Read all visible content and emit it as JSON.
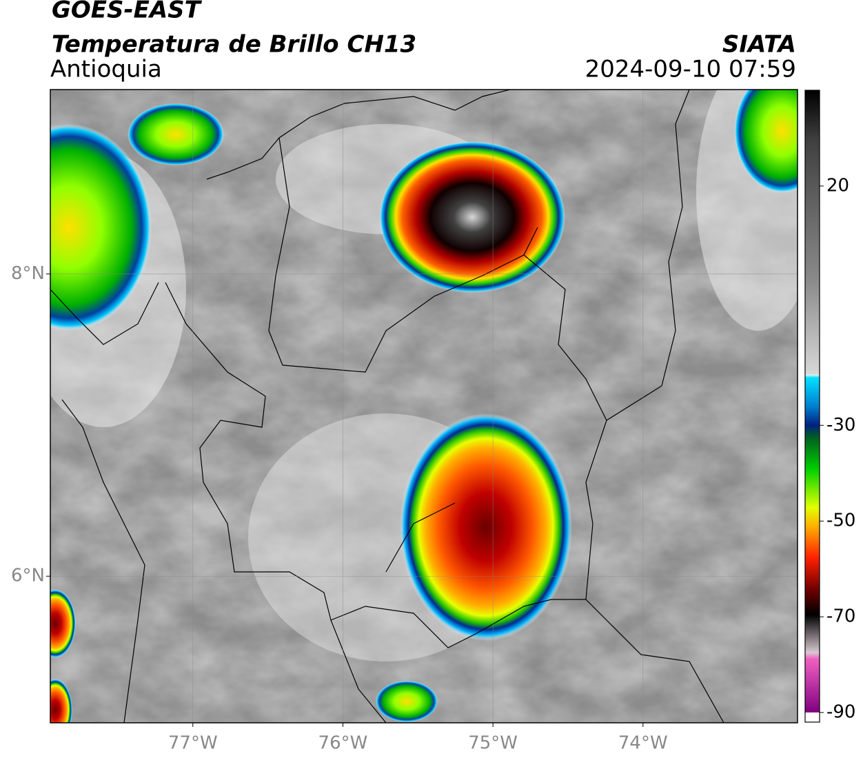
{
  "header": {
    "title": "GOES-EAST",
    "subtitle": "Temperatura de Brillo CH13",
    "region": "Antioquia",
    "source": "SIATA",
    "datetime": "2024-09-10 07:59"
  },
  "map": {
    "xlim": [
      -77.95,
      -72.97
    ],
    "ylim": [
      5.03,
      9.22
    ],
    "xticks": [
      {
        "value": -77,
        "label": "77°W"
      },
      {
        "value": -76,
        "label": "76°W"
      },
      {
        "value": -75,
        "label": "75°W"
      },
      {
        "value": -74,
        "label": "74°W"
      }
    ],
    "yticks": [
      {
        "value": 6,
        "label": "6°N"
      },
      {
        "value": 8,
        "label": "8°N"
      }
    ],
    "grid": true
  },
  "colorbar": {
    "lim": [
      -92,
      40
    ],
    "ticks": [
      20,
      -30,
      -50,
      -70,
      -90
    ]
  }
}
